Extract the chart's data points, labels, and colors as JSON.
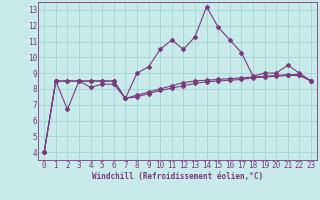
{
  "x_values": [
    0,
    1,
    2,
    3,
    4,
    5,
    6,
    7,
    8,
    9,
    10,
    11,
    12,
    13,
    14,
    15,
    16,
    17,
    18,
    19,
    20,
    21,
    22,
    23
  ],
  "line1_y": [
    4.0,
    8.5,
    6.7,
    8.5,
    8.1,
    8.3,
    8.3,
    7.4,
    9.0,
    9.4,
    10.5,
    11.1,
    10.5,
    11.3,
    13.2,
    11.9,
    11.1,
    10.3,
    8.8,
    9.0,
    9.0,
    9.5,
    9.0,
    8.5
  ],
  "line2_y": [
    4.0,
    8.5,
    8.5,
    8.5,
    8.5,
    8.5,
    8.5,
    7.4,
    7.6,
    7.8,
    8.0,
    8.2,
    8.4,
    8.5,
    8.55,
    8.6,
    8.65,
    8.7,
    8.75,
    8.8,
    8.85,
    8.9,
    8.9,
    8.5
  ],
  "line3_y": [
    4.0,
    8.5,
    8.5,
    8.5,
    8.5,
    8.5,
    8.5,
    7.4,
    7.5,
    7.7,
    7.9,
    8.05,
    8.2,
    8.35,
    8.45,
    8.5,
    8.55,
    8.6,
    8.7,
    8.75,
    8.8,
    8.85,
    8.85,
    8.5
  ],
  "line_color": "#7B3B7B",
  "bg_color": "#c8eaea",
  "grid_color": "#9dcece",
  "ylim": [
    3.5,
    13.5
  ],
  "xlim": [
    -0.5,
    23.5
  ],
  "yticks": [
    4,
    5,
    6,
    7,
    8,
    9,
    10,
    11,
    12,
    13
  ],
  "xticks": [
    0,
    1,
    2,
    3,
    4,
    5,
    6,
    7,
    8,
    9,
    10,
    11,
    12,
    13,
    14,
    15,
    16,
    17,
    18,
    19,
    20,
    21,
    22,
    23
  ],
  "xlabel": "Windchill (Refroidissement éolien,°C)",
  "xlabel_fontsize": 5.5,
  "tick_fontsize": 5.5,
  "marker": "D",
  "marker_size": 2.0,
  "line_width": 0.8
}
